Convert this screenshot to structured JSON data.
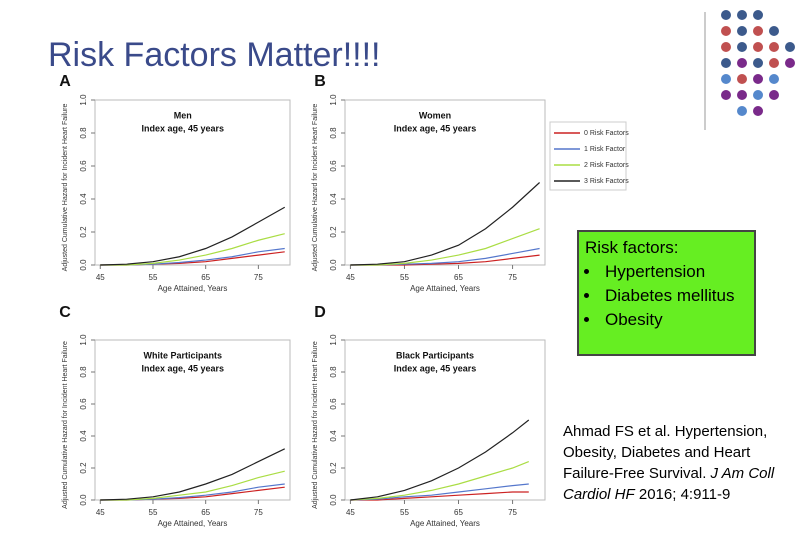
{
  "slide_title": "Risk Factors Matter!!!!",
  "risk_box": {
    "heading": "Risk factors:",
    "items": [
      "Hypertension",
      "Diabetes mellitus",
      "Obesity"
    ]
  },
  "citation": {
    "authors": "Ahmad FS et al.  Hypertension, Obesity, Diabetes and Heart Failure-Free Survival.",
    "journal": "J Am Coll Cardiol HF",
    "details": "2016; 4:911-9"
  },
  "chart_data": [
    {
      "type": "line",
      "panel": "A",
      "title": "Men",
      "subtitle": "Index age, 45 years",
      "y_label": "Adjusted Cumulative Hazard for Incident Heart Failure",
      "x_label": "Age Attained, Years",
      "x": [
        45,
        50,
        55,
        60,
        65,
        70,
        75,
        80
      ],
      "xlim": [
        44,
        81
      ],
      "xticks": [
        45,
        55,
        65,
        75
      ],
      "ylim": [
        0,
        1
      ],
      "yticks": [
        {
          "value": 0,
          "label": "0.0"
        },
        0.2,
        0.4,
        0.6,
        0.8,
        {
          "value": 1,
          "label": "1.0"
        }
      ],
      "series": [
        {
          "color": "#cc2222",
          "values": [
            0,
            0,
            0.005,
            0.01,
            0.02,
            0.04,
            0.06,
            0.08
          ]
        },
        {
          "color": "#5577cc",
          "values": [
            0,
            0,
            0.005,
            0.015,
            0.03,
            0.05,
            0.08,
            0.1
          ]
        },
        {
          "color": "#aadd44",
          "values": [
            0,
            0,
            0.01,
            0.03,
            0.06,
            0.1,
            0.15,
            0.19
          ]
        },
        {
          "color": "#222222",
          "values": [
            0,
            0.005,
            0.02,
            0.05,
            0.1,
            0.17,
            0.26,
            0.35
          ]
        }
      ]
    },
    {
      "type": "line",
      "panel": "B",
      "title": "Women",
      "subtitle": "Index age, 45 years",
      "y_label": "Adjusted Cumulative Hazard for Incident Heart Failure",
      "x_label": "Age Attained, Years",
      "x": [
        45,
        50,
        55,
        60,
        65,
        70,
        75,
        80
      ],
      "xlim": [
        44,
        81
      ],
      "xticks": [
        45,
        55,
        65,
        75
      ],
      "ylim": [
        0,
        1
      ],
      "yticks": [
        {
          "value": 0,
          "label": "0.0"
        },
        0.2,
        0.4,
        0.6,
        0.8,
        {
          "value": 1,
          "label": "1.0"
        }
      ],
      "legend": "outside-right",
      "series": [
        {
          "name": "0 Risk Factors",
          "color": "#cc2222",
          "values": [
            0,
            0,
            0,
            0.005,
            0.01,
            0.02,
            0.04,
            0.06
          ]
        },
        {
          "name": "1 Risk Factor",
          "color": "#5577cc",
          "values": [
            0,
            0,
            0.005,
            0.01,
            0.02,
            0.04,
            0.07,
            0.1
          ]
        },
        {
          "name": "2 Risk Factors",
          "color": "#aadd44",
          "values": [
            0,
            0,
            0.01,
            0.03,
            0.06,
            0.1,
            0.16,
            0.22
          ]
        },
        {
          "name": "3 Risk Factors",
          "color": "#222222",
          "values": [
            0,
            0.005,
            0.02,
            0.06,
            0.12,
            0.22,
            0.35,
            0.5
          ]
        }
      ]
    },
    {
      "type": "line",
      "panel": "C",
      "title": "White Participants",
      "subtitle": "Index age, 45 years",
      "y_label": "Adjusted Cumulative Hazard for Incident Heart Failure",
      "x_label": "Age Attained, Years",
      "x": [
        45,
        50,
        55,
        60,
        65,
        70,
        75,
        80
      ],
      "xlim": [
        44,
        81
      ],
      "xticks": [
        45,
        55,
        65,
        75
      ],
      "ylim": [
        0,
        1
      ],
      "yticks": [
        {
          "value": 0,
          "label": "0.0"
        },
        0.2,
        0.4,
        0.6,
        0.8,
        {
          "value": 1,
          "label": "1.0"
        }
      ],
      "series": [
        {
          "color": "#cc2222",
          "values": [
            0,
            0,
            0.005,
            0.01,
            0.02,
            0.04,
            0.06,
            0.08
          ]
        },
        {
          "color": "#5577cc",
          "values": [
            0,
            0,
            0.005,
            0.015,
            0.03,
            0.05,
            0.08,
            0.1
          ]
        },
        {
          "color": "#aadd44",
          "values": [
            0,
            0,
            0.01,
            0.03,
            0.05,
            0.09,
            0.14,
            0.18
          ]
        },
        {
          "color": "#222222",
          "values": [
            0,
            0.005,
            0.02,
            0.05,
            0.1,
            0.16,
            0.24,
            0.32
          ]
        }
      ]
    },
    {
      "type": "line",
      "panel": "D",
      "title": "Black Participants",
      "subtitle": "Index age, 45 years",
      "y_label": "Adjusted Cumulative Hazard for Incident Heart Failure",
      "x_label": "Age Attained, Years",
      "x": [
        45,
        50,
        55,
        60,
        65,
        70,
        75,
        78
      ],
      "xlim": [
        44,
        81
      ],
      "xticks": [
        45,
        55,
        65,
        75
      ],
      "ylim": [
        0,
        1
      ],
      "yticks": [
        {
          "value": 0,
          "label": "0.0"
        },
        0.2,
        0.4,
        0.6,
        0.8,
        {
          "value": 1,
          "label": "1.0"
        }
      ],
      "series": [
        {
          "color": "#cc2222",
          "values": [
            0,
            0,
            0.01,
            0.02,
            0.03,
            0.04,
            0.05,
            0.05
          ]
        },
        {
          "color": "#5577cc",
          "values": [
            0,
            0.005,
            0.02,
            0.03,
            0.05,
            0.07,
            0.09,
            0.1
          ]
        },
        {
          "color": "#aadd44",
          "values": [
            0,
            0.01,
            0.03,
            0.06,
            0.1,
            0.15,
            0.2,
            0.24
          ]
        },
        {
          "color": "#222222",
          "values": [
            0,
            0.02,
            0.06,
            0.12,
            0.2,
            0.3,
            0.42,
            0.5
          ]
        }
      ]
    }
  ]
}
